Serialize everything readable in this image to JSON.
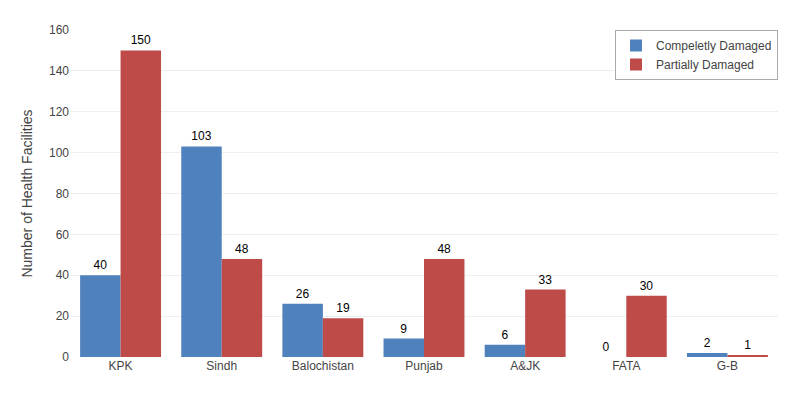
{
  "chart_data": {
    "type": "bar",
    "categories": [
      "KPK",
      "Sindh",
      "Balochistan",
      "Punjab",
      "A&JK",
      "FATA",
      "G-B"
    ],
    "series": [
      {
        "name": "Compeletly Damaged",
        "color": "#4f81bd",
        "values": [
          40,
          103,
          26,
          9,
          6,
          0,
          2
        ]
      },
      {
        "name": "Partially Damaged",
        "color": "#be4b48",
        "values": [
          150,
          48,
          19,
          48,
          33,
          30,
          1
        ]
      }
    ],
    "ylabel": "Number of Health Facilities",
    "ylim": [
      0,
      160
    ],
    "yticks": [
      0,
      20,
      40,
      60,
      80,
      100,
      120,
      140,
      160
    ],
    "grid": true,
    "legend": "upper right",
    "data_labels": true
  }
}
